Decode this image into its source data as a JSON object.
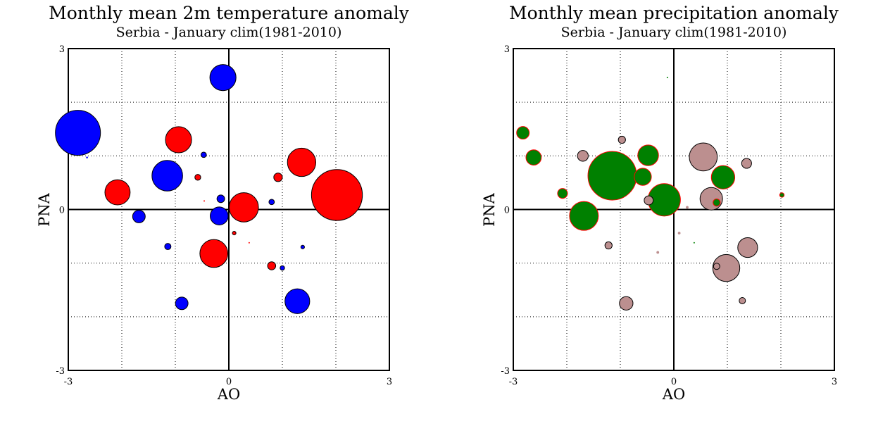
{
  "chart_data": [
    {
      "type": "scatter",
      "title": "Monthly mean 2m temperature anomaly",
      "subtitle": "Serbia - January  clim(1981-2010)",
      "xlabel": "AO",
      "ylabel": "PNA",
      "xlim": [
        -3,
        3
      ],
      "ylim": [
        -3,
        3
      ],
      "xticks": [
        "-3",
        "0",
        "3"
      ],
      "yticks": [
        "-3",
        "0",
        "3"
      ],
      "grid": true,
      "zero_lines": true,
      "colors": {
        "positive": "#ff0000",
        "negative": "#0000ff"
      },
      "points": [
        {
          "x": -2.82,
          "y": 1.43,
          "size": 1.0,
          "color": "negative"
        },
        {
          "x": -0.11,
          "y": 2.46,
          "size": 0.58,
          "color": "negative"
        },
        {
          "x": -0.94,
          "y": 1.3,
          "size": 0.58,
          "color": "positive"
        },
        {
          "x": -2.65,
          "y": 0.97,
          "size": 0.04,
          "color": "negative"
        },
        {
          "x": -0.47,
          "y": 1.02,
          "size": 0.12,
          "color": "negative"
        },
        {
          "x": -1.15,
          "y": 0.63,
          "size": 0.68,
          "color": "negative"
        },
        {
          "x": -0.58,
          "y": 0.6,
          "size": 0.13,
          "color": "positive"
        },
        {
          "x": -2.08,
          "y": 0.32,
          "size": 0.56,
          "color": "positive"
        },
        {
          "x": 1.36,
          "y": 0.88,
          "size": 0.63,
          "color": "positive"
        },
        {
          "x": 2.02,
          "y": 0.27,
          "size": 1.13,
          "color": "positive"
        },
        {
          "x": 0.92,
          "y": 0.6,
          "size": 0.19,
          "color": "positive"
        },
        {
          "x": -0.15,
          "y": 0.2,
          "size": 0.17,
          "color": "negative"
        },
        {
          "x": -0.46,
          "y": 0.16,
          "size": 0.03,
          "color": "positive"
        },
        {
          "x": 0.28,
          "y": 0.04,
          "size": 0.65,
          "color": "positive"
        },
        {
          "x": 0.8,
          "y": 0.14,
          "size": 0.12,
          "color": "negative"
        },
        {
          "x": -1.68,
          "y": -0.13,
          "size": 0.28,
          "color": "negative"
        },
        {
          "x": -0.18,
          "y": -0.12,
          "size": 0.4,
          "color": "negative"
        },
        {
          "x": 0.1,
          "y": -0.44,
          "size": 0.08,
          "color": "positive"
        },
        {
          "x": -1.14,
          "y": -0.69,
          "size": 0.14,
          "color": "negative"
        },
        {
          "x": -0.28,
          "y": -0.82,
          "size": 0.62,
          "color": "positive"
        },
        {
          "x": 0.38,
          "y": -0.62,
          "size": 0.03,
          "color": "positive"
        },
        {
          "x": 1.38,
          "y": -0.7,
          "size": 0.08,
          "color": "negative"
        },
        {
          "x": 0.8,
          "y": -1.05,
          "size": 0.18,
          "color": "positive"
        },
        {
          "x": 1.0,
          "y": -1.09,
          "size": 0.1,
          "color": "negative"
        },
        {
          "x": -0.88,
          "y": -1.75,
          "size": 0.28,
          "color": "negative"
        },
        {
          "x": 1.28,
          "y": -1.71,
          "size": 0.55,
          "color": "negative"
        }
      ]
    },
    {
      "type": "scatter",
      "title": "Monthly mean precipitation anomaly",
      "subtitle": "Serbia - January  clim(1981-2010)",
      "xlabel": "AO",
      "ylabel": "PNA",
      "xlim": [
        -3,
        3
      ],
      "ylim": [
        -3,
        3
      ],
      "xticks": [
        "-3",
        "0",
        "3"
      ],
      "yticks": [
        "-3",
        "0",
        "3"
      ],
      "grid": true,
      "zero_lines": true,
      "colors": {
        "positive": "#008000",
        "negative": "#bc8f8f"
      },
      "points": [
        {
          "x": -0.12,
          "y": 2.46,
          "size": 0.03,
          "color": "positive"
        },
        {
          "x": -2.82,
          "y": 1.43,
          "size": 0.28,
          "color": "positive"
        },
        {
          "x": -2.62,
          "y": 0.97,
          "size": 0.34,
          "color": "positive"
        },
        {
          "x": -0.97,
          "y": 1.3,
          "size": 0.16,
          "color": "negative"
        },
        {
          "x": -1.7,
          "y": 1.0,
          "size": 0.24,
          "color": "negative"
        },
        {
          "x": -0.48,
          "y": 1.01,
          "size": 0.46,
          "color": "positive"
        },
        {
          "x": 0.55,
          "y": 0.98,
          "size": 0.62,
          "color": "negative"
        },
        {
          "x": 1.36,
          "y": 0.86,
          "size": 0.22,
          "color": "negative"
        },
        {
          "x": -1.15,
          "y": 0.63,
          "size": 1.08,
          "color": "positive"
        },
        {
          "x": -0.58,
          "y": 0.61,
          "size": 0.38,
          "color": "positive"
        },
        {
          "x": 0.92,
          "y": 0.6,
          "size": 0.52,
          "color": "positive"
        },
        {
          "x": -2.08,
          "y": 0.3,
          "size": 0.22,
          "color": "positive"
        },
        {
          "x": 2.02,
          "y": 0.27,
          "size": 0.1,
          "color": "positive"
        },
        {
          "x": -0.47,
          "y": 0.17,
          "size": 0.2,
          "color": "negative"
        },
        {
          "x": -0.18,
          "y": 0.18,
          "size": 0.72,
          "color": "positive"
        },
        {
          "x": 0.7,
          "y": 0.2,
          "size": 0.5,
          "color": "negative"
        },
        {
          "x": 0.8,
          "y": 0.13,
          "size": 0.16,
          "color": "positive"
        },
        {
          "x": 0.25,
          "y": 0.04,
          "size": 0.06,
          "color": "negative"
        },
        {
          "x": -1.68,
          "y": -0.12,
          "size": 0.64,
          "color": "positive"
        },
        {
          "x": 0.1,
          "y": -0.44,
          "size": 0.06,
          "color": "negative"
        },
        {
          "x": -1.22,
          "y": -0.67,
          "size": 0.16,
          "color": "negative"
        },
        {
          "x": -0.3,
          "y": -0.8,
          "size": 0.06,
          "color": "negative"
        },
        {
          "x": 0.38,
          "y": -0.62,
          "size": 0.02,
          "color": "positive"
        },
        {
          "x": 1.38,
          "y": -0.71,
          "size": 0.44,
          "color": "negative"
        },
        {
          "x": 0.98,
          "y": -1.09,
          "size": 0.6,
          "color": "negative"
        },
        {
          "x": 0.8,
          "y": -1.06,
          "size": 0.14,
          "color": "negative"
        },
        {
          "x": -0.89,
          "y": -1.75,
          "size": 0.3,
          "color": "negative"
        },
        {
          "x": 1.28,
          "y": -1.7,
          "size": 0.14,
          "color": "negative"
        }
      ]
    }
  ]
}
